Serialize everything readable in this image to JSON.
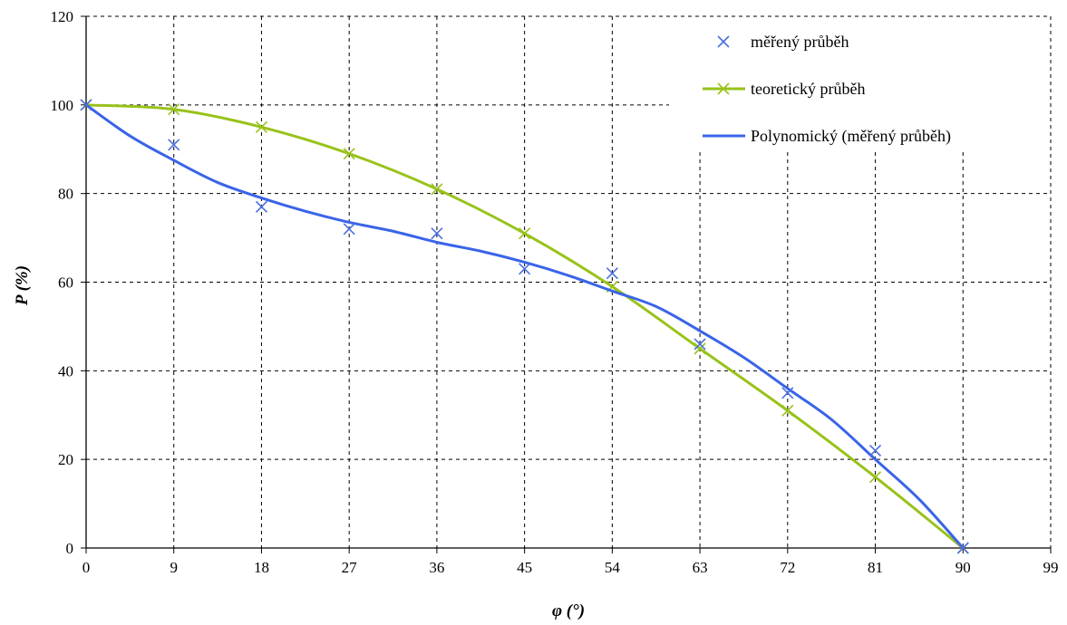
{
  "chart_data": {
    "type": "scatter",
    "xlabel": "φ (°)",
    "ylabel": "P (%)",
    "xlim": [
      0,
      99
    ],
    "ylim": [
      0,
      120
    ],
    "x_ticks": [
      0,
      9,
      18,
      27,
      36,
      45,
      54,
      63,
      72,
      81,
      90,
      99
    ],
    "y_ticks": [
      0,
      20,
      40,
      60,
      80,
      100,
      120
    ],
    "grid": "dashed",
    "legend_position": "top-right",
    "series": [
      {
        "name": "měřený průběh",
        "kind": "markers",
        "marker": "x",
        "color": "#4a6fe0",
        "x": [
          0,
          9,
          18,
          27,
          36,
          45,
          54,
          63,
          72,
          81,
          90
        ],
        "y": [
          100,
          91,
          77,
          72,
          71,
          63,
          62,
          46,
          35,
          22,
          0
        ]
      },
      {
        "name": "teoretický průběh",
        "kind": "line+markers",
        "marker": "x",
        "color": "#99c21a",
        "x": [
          0,
          9,
          18,
          27,
          36,
          45,
          54,
          63,
          72,
          81,
          90
        ],
        "y": [
          100,
          99,
          95,
          89,
          81,
          71,
          59,
          45,
          31,
          16,
          0
        ]
      },
      {
        "name": "Polynomický (měřený průběh)",
        "kind": "line",
        "color": "#3a64e8",
        "x": [
          0,
          4.5,
          9,
          13.5,
          18,
          22.5,
          27,
          31.5,
          36,
          40.5,
          45,
          49.5,
          54,
          58.5,
          63,
          67.5,
          72,
          76.5,
          81,
          85.5,
          90
        ],
        "y": [
          100,
          93,
          87.5,
          82.5,
          79,
          76,
          73.5,
          71.5,
          69,
          67,
          64.5,
          61.5,
          58,
          54.5,
          49,
          43,
          36,
          29,
          20,
          11,
          0
        ]
      }
    ]
  }
}
